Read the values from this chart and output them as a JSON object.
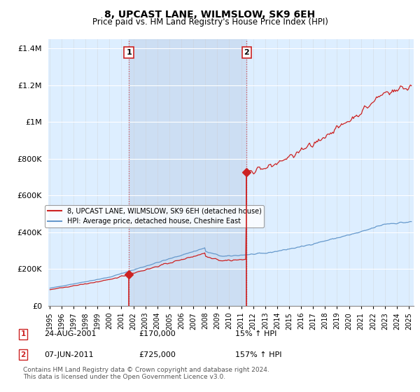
{
  "title": "8, UPCAST LANE, WILMSLOW, SK9 6EH",
  "subtitle": "Price paid vs. HM Land Registry's House Price Index (HPI)",
  "legend_line1": "8, UPCAST LANE, WILMSLOW, SK9 6EH (detached house)",
  "legend_line2": "HPI: Average price, detached house, Cheshire East",
  "sale1_date": "24-AUG-2001",
  "sale1_price": 170000,
  "sale1_pct": "15%",
  "sale2_date": "07-JUN-2011",
  "sale2_price": 725000,
  "sale2_pct": "157%",
  "footer": "Contains HM Land Registry data © Crown copyright and database right 2024.\nThis data is licensed under the Open Government Licence v3.0.",
  "red_color": "#cc2222",
  "blue_color": "#6699cc",
  "background_color": "#ddeeff",
  "shade_color": "#c8daf0",
  "ylim": [
    0,
    1450000
  ],
  "xlim_start": 1994.9,
  "xlim_end": 2025.4
}
